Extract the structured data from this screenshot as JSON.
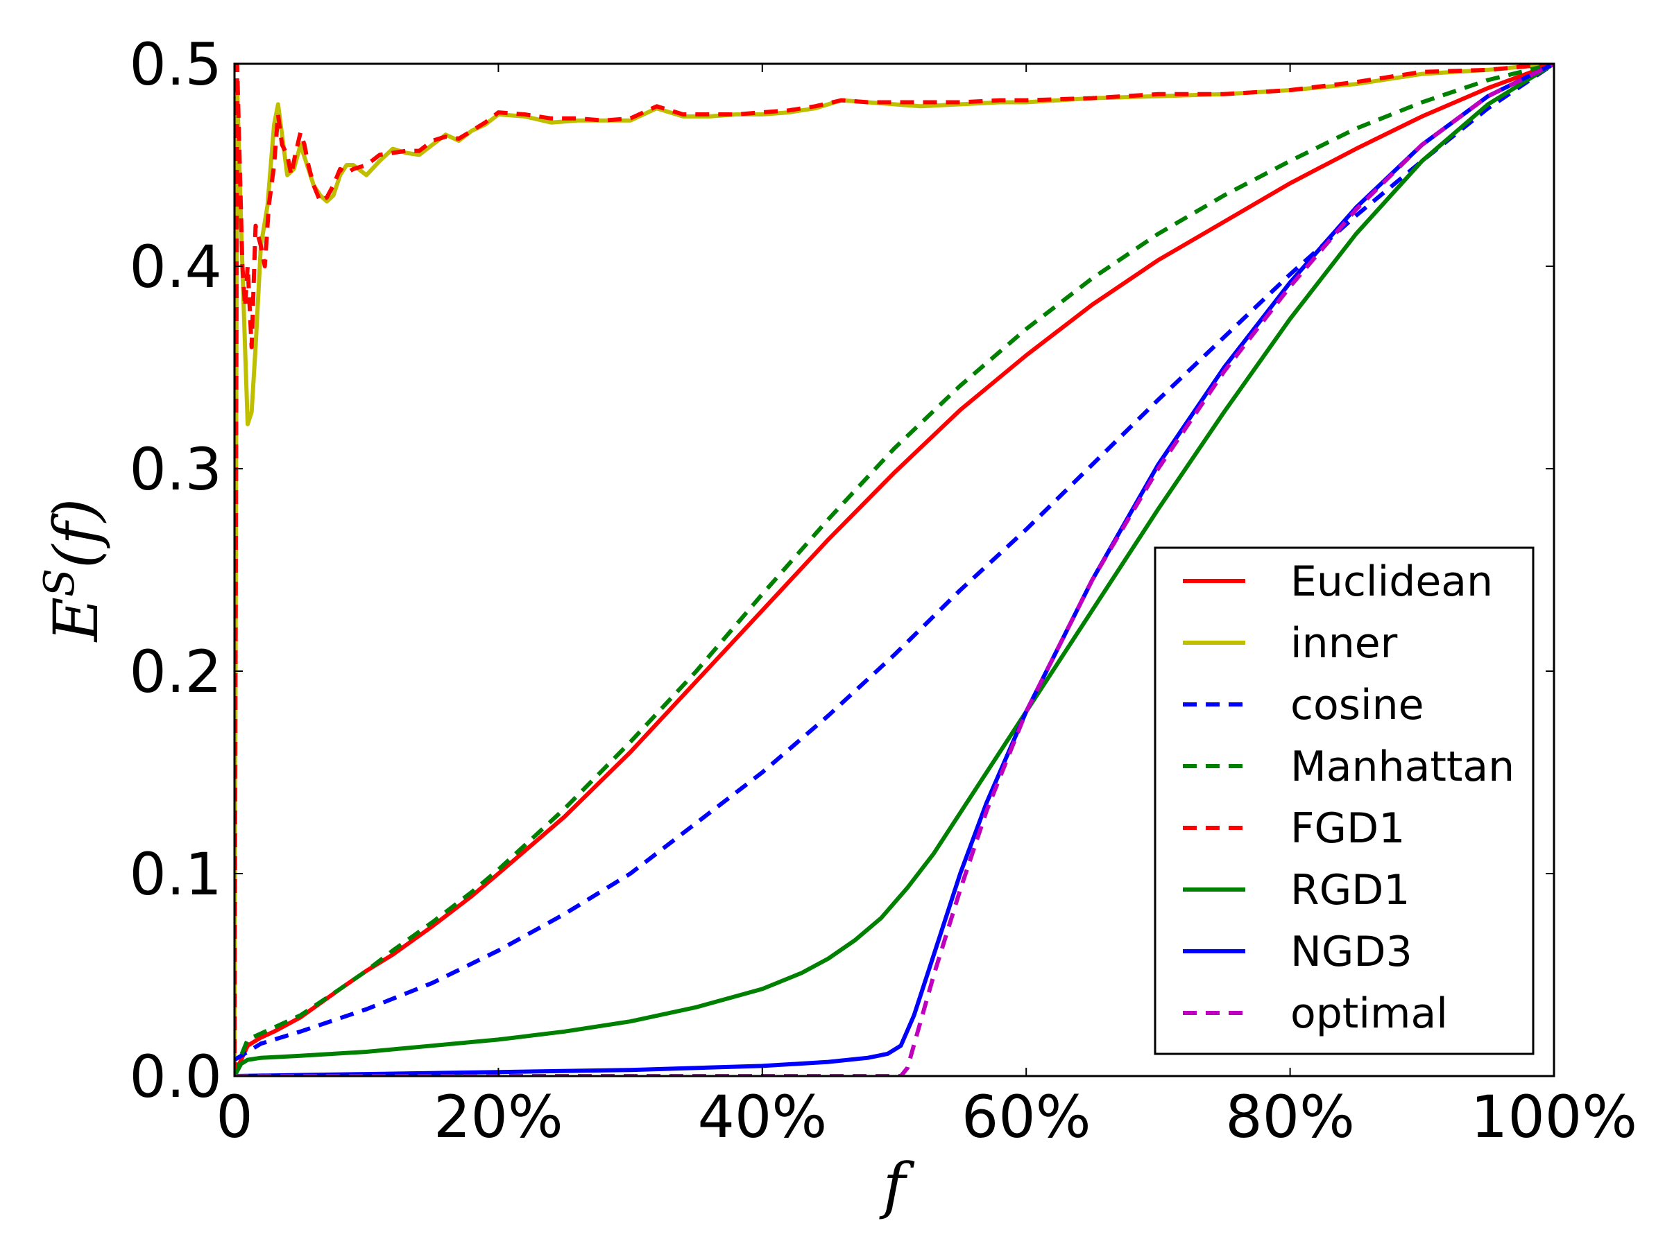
{
  "chart_data": {
    "type": "line",
    "title": "",
    "xlabel": "f",
    "ylabel_base": "E",
    "ylabel_superscript": "S",
    "ylabel_arg": "(f)",
    "xlim": [
      0,
      100
    ],
    "ylim": [
      0,
      0.5
    ],
    "xticks": [
      0,
      20,
      40,
      60,
      80,
      100
    ],
    "xtick_labels": [
      "0",
      "20%",
      "40%",
      "60%",
      "80%",
      "100%"
    ],
    "yticks": [
      0,
      0.1,
      0.2,
      0.3,
      0.4,
      0.5
    ],
    "ytick_labels": [
      "0.0",
      "0.1",
      "0.2",
      "0.3",
      "0.4",
      "0.5"
    ],
    "legend_position": "lower-right",
    "series": [
      {
        "name": "Euclidean",
        "color": "#ff0000",
        "dash": "solid",
        "x": [
          0,
          0.5,
          1,
          2,
          3,
          5,
          8,
          10,
          12,
          15,
          18,
          20,
          25,
          30,
          35,
          40,
          45,
          50,
          55,
          60,
          65,
          70,
          75,
          80,
          85,
          90,
          95,
          100
        ],
        "y": [
          0,
          0.008,
          0.015,
          0.019,
          0.022,
          0.029,
          0.043,
          0.052,
          0.06,
          0.074,
          0.089,
          0.1,
          0.128,
          0.16,
          0.195,
          0.23,
          0.265,
          0.298,
          0.329,
          0.356,
          0.381,
          0.403,
          0.422,
          0.441,
          0.458,
          0.474,
          0.488,
          0.5
        ]
      },
      {
        "name": "inner",
        "color": "#bfbf00",
        "dash": "solid",
        "x": [
          0,
          0.2,
          0.5,
          0.8,
          1.0,
          1.3,
          1.6,
          2.0,
          2.5,
          3.0,
          3.3,
          3.6,
          4.0,
          4.5,
          5.0,
          5.5,
          6.0,
          6.5,
          7.0,
          7.5,
          8.0,
          8.5,
          9.0,
          10,
          11,
          12,
          13,
          14,
          15,
          16,
          17,
          18,
          19,
          20,
          22,
          24,
          26,
          28,
          30,
          32,
          34,
          36,
          38,
          40,
          42,
          44,
          46,
          48,
          50,
          52,
          55,
          58,
          60,
          65,
          70,
          75,
          80,
          85,
          90,
          95,
          100
        ],
        "y": [
          0,
          0.49,
          0.42,
          0.36,
          0.322,
          0.328,
          0.36,
          0.41,
          0.43,
          0.47,
          0.48,
          0.465,
          0.445,
          0.448,
          0.46,
          0.45,
          0.44,
          0.435,
          0.432,
          0.435,
          0.445,
          0.45,
          0.45,
          0.445,
          0.452,
          0.458,
          0.456,
          0.455,
          0.46,
          0.465,
          0.462,
          0.467,
          0.47,
          0.475,
          0.474,
          0.471,
          0.472,
          0.472,
          0.472,
          0.478,
          0.474,
          0.474,
          0.475,
          0.475,
          0.476,
          0.478,
          0.482,
          0.481,
          0.48,
          0.479,
          0.48,
          0.481,
          0.481,
          0.483,
          0.484,
          0.485,
          0.487,
          0.49,
          0.495,
          0.497,
          0.5
        ]
      },
      {
        "name": "cosine",
        "color": "#0000ff",
        "dash": "dashed",
        "x": [
          0,
          1,
          2,
          5,
          10,
          15,
          20,
          25,
          30,
          35,
          40,
          45,
          50,
          55,
          60,
          65,
          70,
          75,
          80,
          85,
          90,
          95,
          100
        ],
        "y": [
          0.008,
          0.012,
          0.016,
          0.022,
          0.033,
          0.046,
          0.062,
          0.08,
          0.1,
          0.125,
          0.15,
          0.178,
          0.208,
          0.24,
          0.27,
          0.302,
          0.334,
          0.365,
          0.396,
          0.425,
          0.452,
          0.478,
          0.5
        ]
      },
      {
        "name": "Manhattan",
        "color": "#008000",
        "dash": "dashed",
        "x": [
          0,
          0.5,
          1,
          2,
          3,
          5,
          8,
          10,
          12,
          15,
          18,
          20,
          25,
          30,
          35,
          40,
          45,
          50,
          55,
          60,
          65,
          70,
          75,
          80,
          85,
          90,
          95,
          100
        ],
        "y": [
          0,
          0.01,
          0.018,
          0.021,
          0.024,
          0.03,
          0.043,
          0.052,
          0.062,
          0.076,
          0.091,
          0.102,
          0.132,
          0.165,
          0.2,
          0.238,
          0.275,
          0.31,
          0.341,
          0.369,
          0.394,
          0.416,
          0.435,
          0.452,
          0.468,
          0.481,
          0.492,
          0.5
        ]
      },
      {
        "name": "FGD1",
        "color": "#ff0000",
        "dash": "dashed",
        "x": [
          0,
          0.2,
          0.4,
          0.6,
          0.8,
          1.0,
          1.3,
          1.6,
          2.0,
          2.3,
          2.6,
          3.0,
          3.3,
          3.6,
          4.0,
          4.3,
          4.6,
          5.0,
          5.3,
          5.6,
          6.0,
          6.5,
          7.0,
          7.5,
          8.0,
          8.5,
          9.0,
          10,
          11,
          12,
          13,
          14,
          15,
          16,
          17,
          18,
          19,
          20,
          22,
          24,
          26,
          28,
          30,
          32,
          34,
          36,
          38,
          40,
          42,
          44,
          46,
          48,
          50,
          52,
          55,
          58,
          60,
          65,
          70,
          75,
          80,
          85,
          90,
          95,
          100
        ],
        "y": [
          0,
          0.5,
          0.45,
          0.4,
          0.38,
          0.4,
          0.36,
          0.42,
          0.41,
          0.4,
          0.43,
          0.45,
          0.475,
          0.46,
          0.455,
          0.445,
          0.455,
          0.466,
          0.46,
          0.45,
          0.44,
          0.432,
          0.434,
          0.44,
          0.448,
          0.446,
          0.448,
          0.45,
          0.455,
          0.456,
          0.457,
          0.457,
          0.462,
          0.464,
          0.463,
          0.467,
          0.471,
          0.476,
          0.475,
          0.473,
          0.473,
          0.472,
          0.473,
          0.479,
          0.475,
          0.475,
          0.475,
          0.476,
          0.477,
          0.479,
          0.482,
          0.481,
          0.481,
          0.481,
          0.481,
          0.482,
          0.482,
          0.483,
          0.485,
          0.485,
          0.487,
          0.491,
          0.496,
          0.497,
          0.5
        ]
      },
      {
        "name": "RGD1",
        "color": "#008000",
        "dash": "solid",
        "x": [
          0,
          0.5,
          1,
          2,
          5,
          10,
          15,
          20,
          25,
          30,
          35,
          40,
          43,
          45,
          47,
          49,
          51,
          53,
          55,
          57,
          60,
          65,
          70,
          75,
          80,
          85,
          90,
          95,
          100
        ],
        "y": [
          0,
          0.006,
          0.008,
          0.009,
          0.01,
          0.012,
          0.015,
          0.018,
          0.022,
          0.027,
          0.034,
          0.043,
          0.051,
          0.058,
          0.067,
          0.078,
          0.093,
          0.11,
          0.13,
          0.15,
          0.18,
          0.23,
          0.28,
          0.328,
          0.374,
          0.416,
          0.452,
          0.48,
          0.5
        ]
      },
      {
        "name": "NGD3",
        "color": "#0000ff",
        "dash": "solid",
        "x": [
          0,
          5,
          10,
          20,
          30,
          40,
          45,
          48,
          49.5,
          50.5,
          51.5,
          53,
          55,
          57,
          60,
          65,
          70,
          75,
          80,
          85,
          90,
          95,
          100
        ],
        "y": [
          0,
          0.0005,
          0.001,
          0.002,
          0.003,
          0.005,
          0.007,
          0.009,
          0.011,
          0.015,
          0.03,
          0.06,
          0.1,
          0.135,
          0.18,
          0.245,
          0.302,
          0.35,
          0.392,
          0.429,
          0.46,
          0.484,
          0.5
        ]
      },
      {
        "name": "optimal",
        "color": "#bf00bf",
        "dash": "dashed",
        "x": [
          0,
          10,
          20,
          30,
          40,
          50,
          50.5,
          51,
          53,
          55,
          57,
          60,
          65,
          70,
          75,
          80,
          85,
          90,
          95,
          100
        ],
        "y": [
          0,
          0,
          0,
          0,
          0,
          0,
          0,
          0.004,
          0.05,
          0.092,
          0.131,
          0.18,
          0.245,
          0.3,
          0.348,
          0.39,
          0.428,
          0.46,
          0.484,
          0.5
        ]
      }
    ]
  }
}
